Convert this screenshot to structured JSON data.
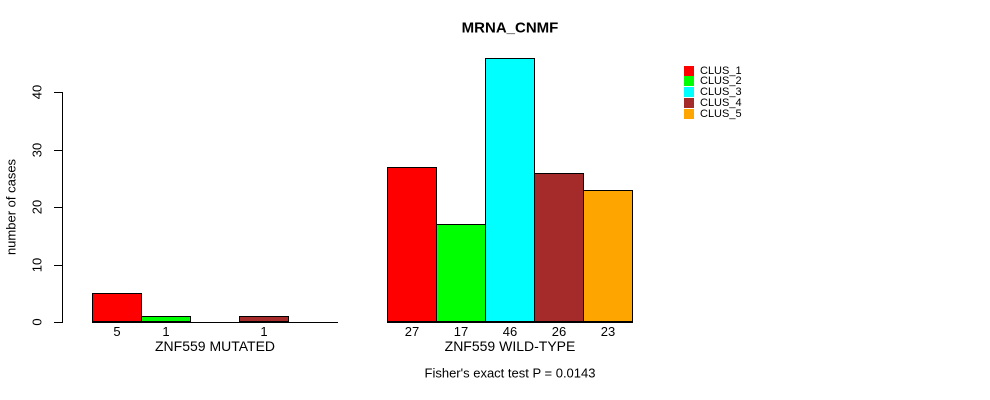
{
  "chart_data": {
    "type": "bar",
    "title": "MRNA_CNMF",
    "ylabel": "number of cases",
    "footnote": "Fisher's exact test P = 0.0143",
    "categories": [
      "ZNF559 MUTATED",
      "ZNF559 WILD-TYPE"
    ],
    "y_ticks": [
      0,
      10,
      20,
      30,
      40
    ],
    "ylim": [
      0,
      46
    ],
    "grid": false,
    "legend_position": "top-right",
    "bar_value_labels": "shown under each non-zero bar",
    "series": [
      {
        "name": "CLUS_1",
        "color": "#ff0000",
        "values": [
          5,
          27
        ]
      },
      {
        "name": "CLUS_2",
        "color": "#00ff00",
        "values": [
          1,
          17
        ]
      },
      {
        "name": "CLUS_3",
        "color": "#00ffff",
        "values": [
          0,
          46
        ]
      },
      {
        "name": "CLUS_4",
        "color": "#a52a2a",
        "values": [
          1,
          26
        ]
      },
      {
        "name": "CLUS_5",
        "color": "#ffa500",
        "values": [
          0,
          23
        ]
      }
    ]
  }
}
